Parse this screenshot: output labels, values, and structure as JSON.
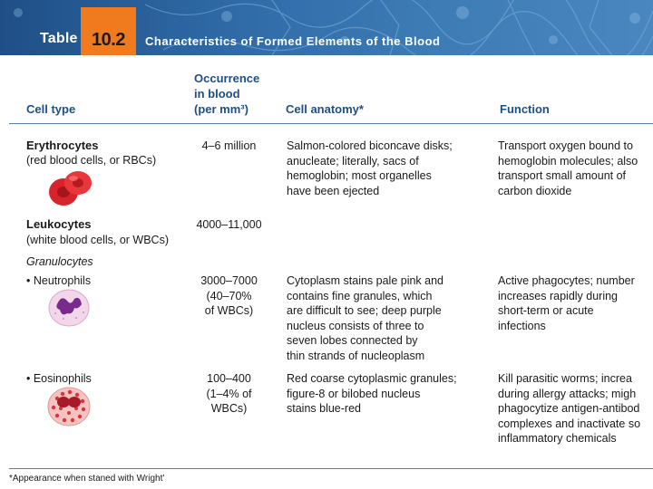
{
  "banner": {
    "table_label": "Table",
    "table_number": "10.2",
    "title": "Characteristics of Formed Elements of the Blood"
  },
  "columns": {
    "cell_type": "Cell type",
    "occurrence": "Occurrence\nin blood\n(per mm³)",
    "anatomy": "Cell anatomy*",
    "function": "Function"
  },
  "rows": {
    "erythrocytes": {
      "name": "Erythrocytes",
      "subname": "(red blood cells, or RBCs)",
      "occurrence": "4–6 million",
      "anatomy": "Salmon-colored biconcave disks;\nanucleate; literally, sacs of\nhemoglobin; most organelles\nhave been ejected",
      "function": "Transport oxygen bound to\nhemoglobin molecules; also\ntransport small amount of\ncarbon dioxide"
    },
    "leukocytes": {
      "name": "Leukocytes",
      "subname": "(white blood cells, or WBCs)",
      "occurrence": "4000–11,000"
    },
    "granulocytes_label": "Granulocytes",
    "neutrophils": {
      "name": "• Neutrophils",
      "occurrence": "3000–7000\n(40–70%\nof WBCs)",
      "anatomy": "Cytoplasm stains pale pink and\ncontains fine granules, which\nare difficult to see; deep purple\nnucleus consists of three to\nseven lobes connected by\nthin strands of nucleoplasm",
      "function": "Active phagocytes; number\nincreases rapidly during\nshort-term or acute\ninfections"
    },
    "eosinophils": {
      "name": "• Eosinophils",
      "occurrence": "100–400\n(1–4% of\nWBCs)",
      "anatomy": "Red coarse cytoplasmic granules;\nfigure-8 or bilobed nucleus\nstains blue-red",
      "function": "Kill parasitic worms; increa\nduring allergy attacks; migh\nphagocytize antigen-antibod\ncomplexes and inactivate so\ninflammatory chemicals"
    }
  },
  "footnote": "*Appearance when staned with Wright'",
  "colors": {
    "banner_blue": "#2f6aa6",
    "number_orange": "#f07b1f",
    "header_blue": "#1f4f86"
  }
}
